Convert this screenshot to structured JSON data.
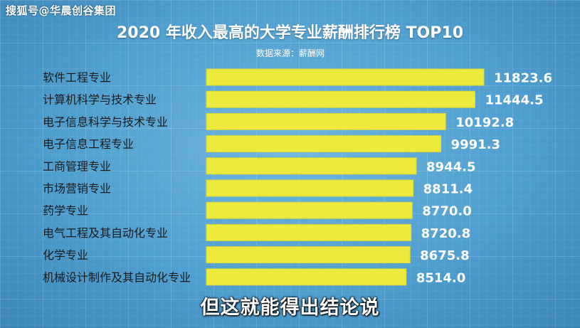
{
  "watermark": "搜狐号@华晨创谷集团",
  "subtitle": "但这就能得出结论说",
  "colors": {
    "bar": "#ecea3c",
    "bar_stroke": "#d8d63a",
    "background": "#5aa8d6"
  },
  "chart_data": {
    "type": "bar",
    "orientation": "horizontal",
    "title": "2020 年收入最高的大学专业薪酬排行榜 TOP10",
    "source": "数据来源：薪酬网",
    "xlabel": "",
    "ylabel": "",
    "grid": false,
    "legend": "none",
    "categories": [
      "软件工程专业",
      "计算机科学与技术专业",
      "电子信息科学与技术专业",
      "电子信息工程专业",
      "工商管理专业",
      "市场营销专业",
      "药学专业",
      "电气工程及其自动化专业",
      "化学专业",
      "机械设计制作及其自动化专业"
    ],
    "values": [
      11823.6,
      11444.5,
      10192.8,
      9991.3,
      8944.5,
      8811.4,
      8770.0,
      8720.8,
      8675.8,
      8514.0
    ],
    "value_labels": [
      "11823.6",
      "11444.5",
      "10192.8",
      "9991.3",
      "8944.5",
      "8811.4",
      "8770.0",
      "8720.8",
      "8675.8",
      "8514.0"
    ],
    "xlim": [
      0,
      11823.6
    ]
  }
}
